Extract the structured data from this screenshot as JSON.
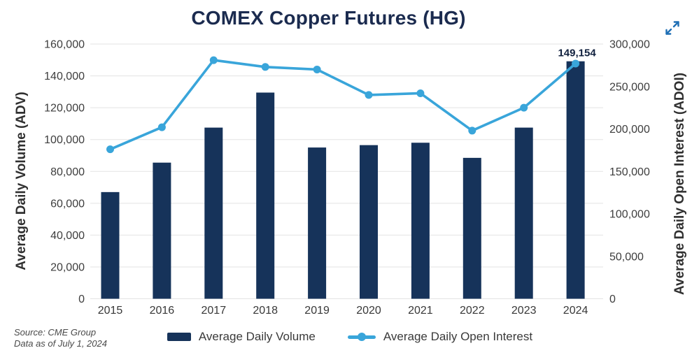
{
  "title": "COMEX Copper Futures (HG)",
  "expand_button": {
    "icon": "expand-diagonal-arrows"
  },
  "source": {
    "line1": "Source: CME Group",
    "line2": "Data as of July 1, 2024"
  },
  "legend": [
    {
      "label": "Average Daily Volume",
      "type": "bar"
    },
    {
      "label": "Average Daily Open Interest",
      "type": "line"
    }
  ],
  "colors": {
    "bar_navy": "#16335a",
    "line_blue": "#39a5da",
    "title_navy": "#1b2b4f",
    "grid": "#e3e3e3",
    "axis_text": "#3d3d3d",
    "annotation_text": "#10203e",
    "expand_icon_blue": "#1e6fb5"
  },
  "chart_data": {
    "type": "bar",
    "title": "COMEX Copper Futures (HG)",
    "categories": [
      "2015",
      "2016",
      "2017",
      "2018",
      "2019",
      "2020",
      "2021",
      "2022",
      "2023",
      "2024"
    ],
    "series": [
      {
        "name": "Average Daily Volume",
        "type": "bar",
        "axis": "left",
        "values": [
          67000,
          85500,
          107500,
          129500,
          95000,
          96500,
          98000,
          88500,
          107500,
          149154
        ]
      },
      {
        "name": "Average Daily Open Interest",
        "type": "line",
        "axis": "right",
        "values": [
          176000,
          202000,
          281000,
          273000,
          270000,
          240000,
          242000,
          198000,
          225000,
          277000
        ]
      }
    ],
    "left_axis": {
      "label": "Average Daily Volume (ADV)",
      "ticks": [
        0,
        20000,
        40000,
        60000,
        80000,
        100000,
        120000,
        140000,
        160000
      ],
      "max": 160000
    },
    "right_axis": {
      "label": "Average Daily Open Interest (ADOI)",
      "ticks": [
        0,
        50000,
        100000,
        150000,
        200000,
        250000,
        300000
      ],
      "max": 300000
    },
    "annotation": {
      "text": "149,154",
      "category": "2024",
      "series": "Average Daily Volume"
    },
    "grid": true,
    "legend_position": "bottom"
  }
}
